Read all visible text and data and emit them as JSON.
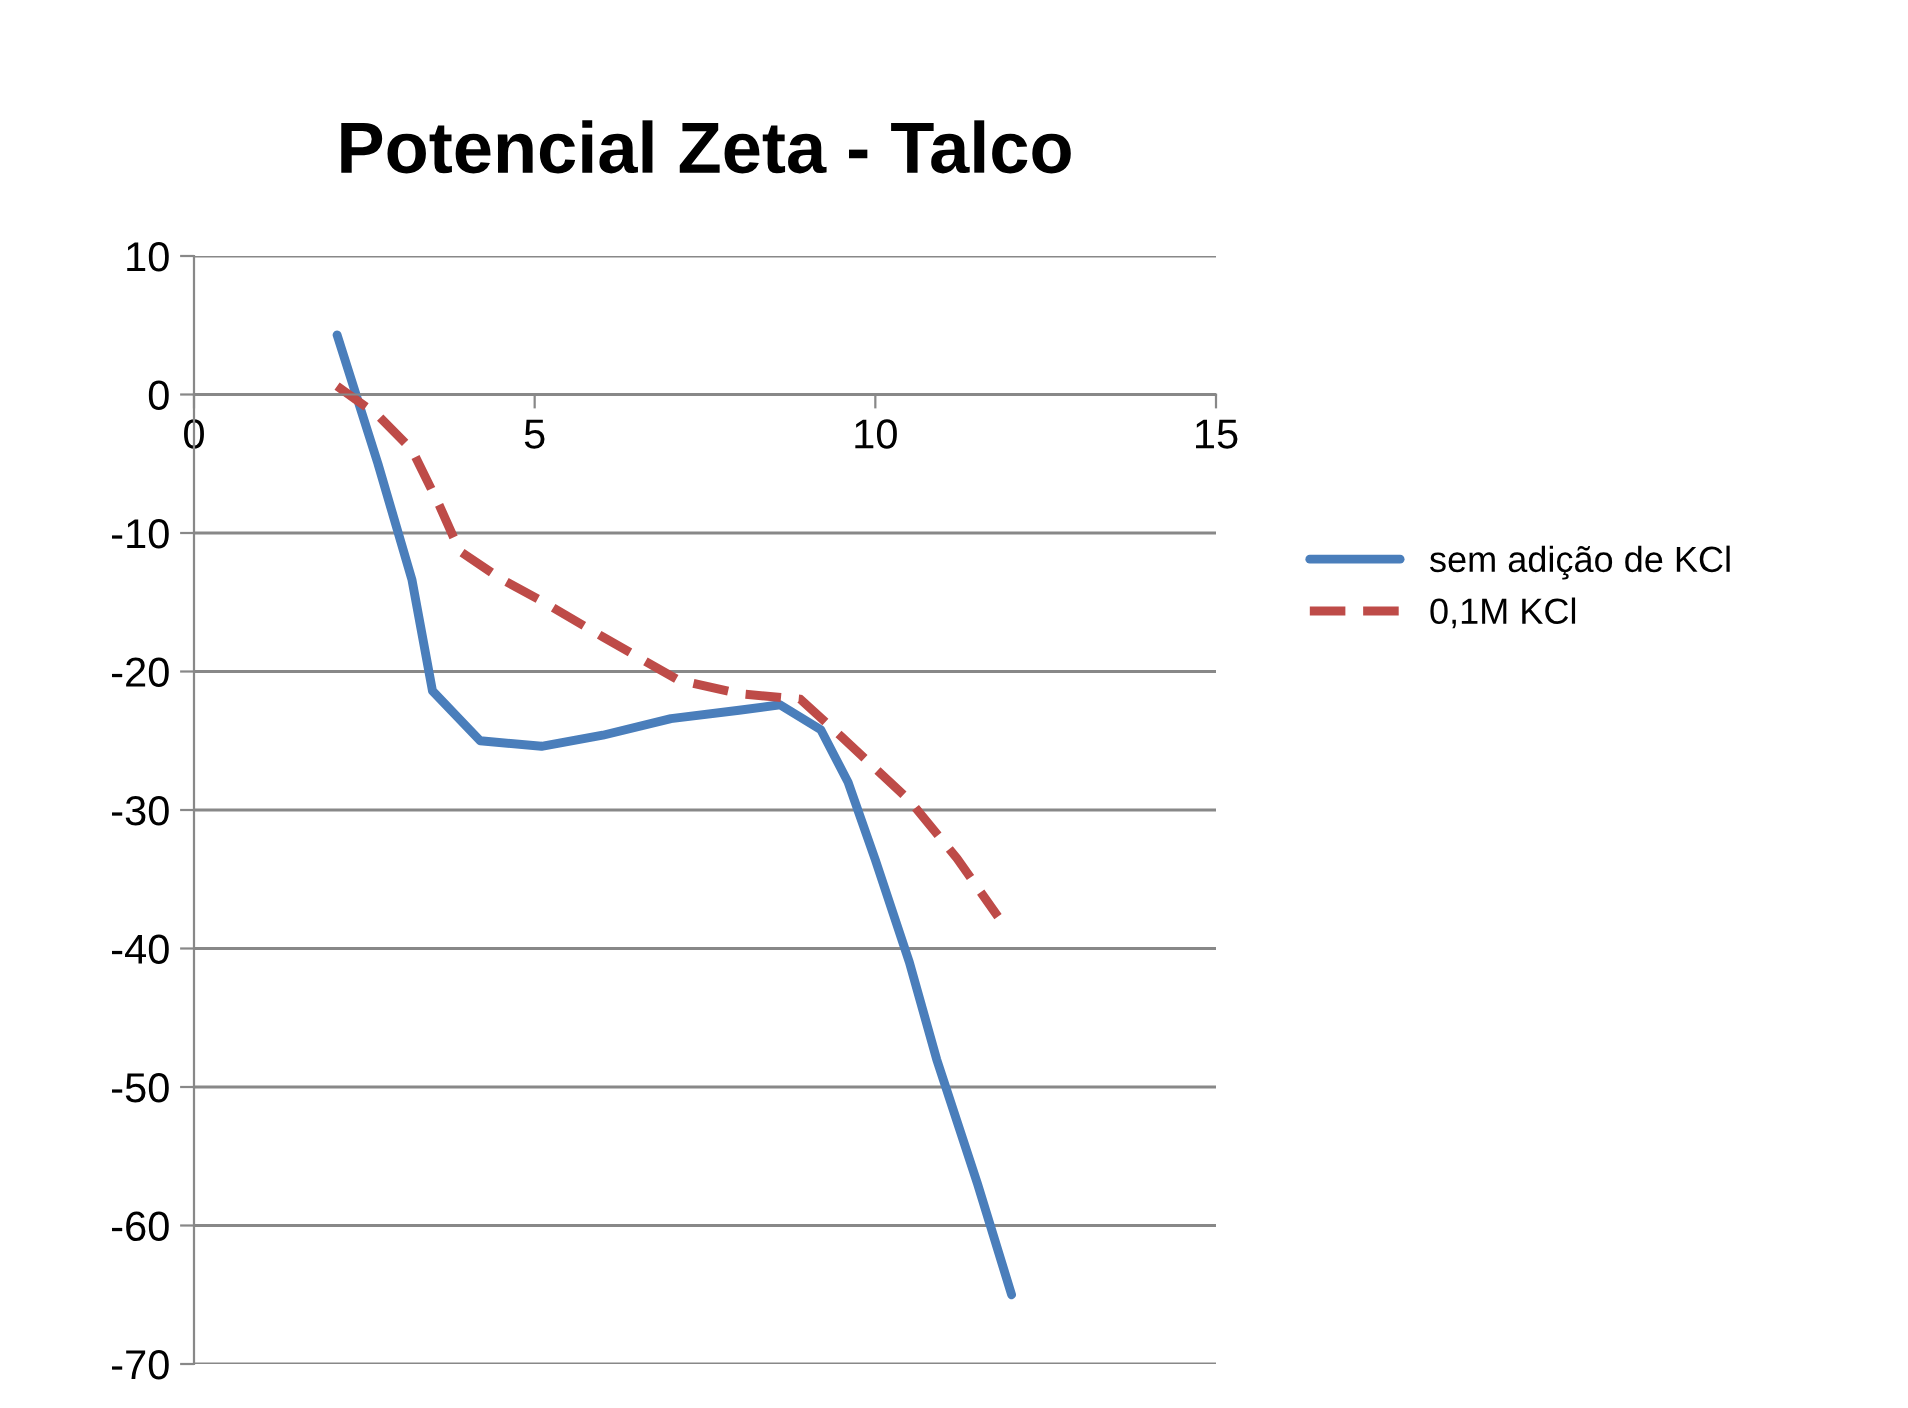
{
  "chart_data": {
    "type": "line",
    "title": "Potencial Zeta - Talco",
    "series": [
      {
        "name": "sem adição de KCl",
        "color": "#4a7ebb",
        "line_style": "solid",
        "x": [
          2.1,
          2.7,
          3.2,
          3.5,
          4.2,
          5.1,
          6.0,
          7.0,
          8.0,
          8.6,
          9.2,
          9.6,
          10.0,
          10.5,
          10.9,
          11.5,
          12.0
        ],
        "values": [
          4.3,
          -5.0,
          -13.4,
          -21.4,
          -25.0,
          -25.4,
          -24.6,
          -23.4,
          -22.8,
          -22.4,
          -24.2,
          -28.0,
          -33.6,
          -41.0,
          -48.0,
          -57.0,
          -65.0
        ]
      },
      {
        "name": "0,1M KCl",
        "color": "#be4b48",
        "line_style": "dashed",
        "x": [
          2.1,
          2.7,
          3.2,
          3.6,
          3.9,
          4.5,
          5.1,
          6.0,
          7.1,
          8.0,
          8.9,
          9.5,
          10.0,
          10.5,
          11.2,
          11.8
        ],
        "values": [
          0.6,
          -1.5,
          -4.0,
          -8.0,
          -11.3,
          -13.3,
          -14.9,
          -17.5,
          -20.6,
          -21.6,
          -22.0,
          -24.7,
          -27.0,
          -29.3,
          -33.5,
          -37.7
        ]
      }
    ],
    "xlim": [
      0,
      15
    ],
    "xticks": [
      0,
      5,
      10,
      15
    ],
    "ylim": [
      -70,
      10
    ],
    "yticks": [
      -70,
      -60,
      -50,
      -40,
      -30,
      -20,
      -10,
      0,
      10
    ],
    "grid": "y",
    "legend": "right",
    "marker": "none"
  }
}
